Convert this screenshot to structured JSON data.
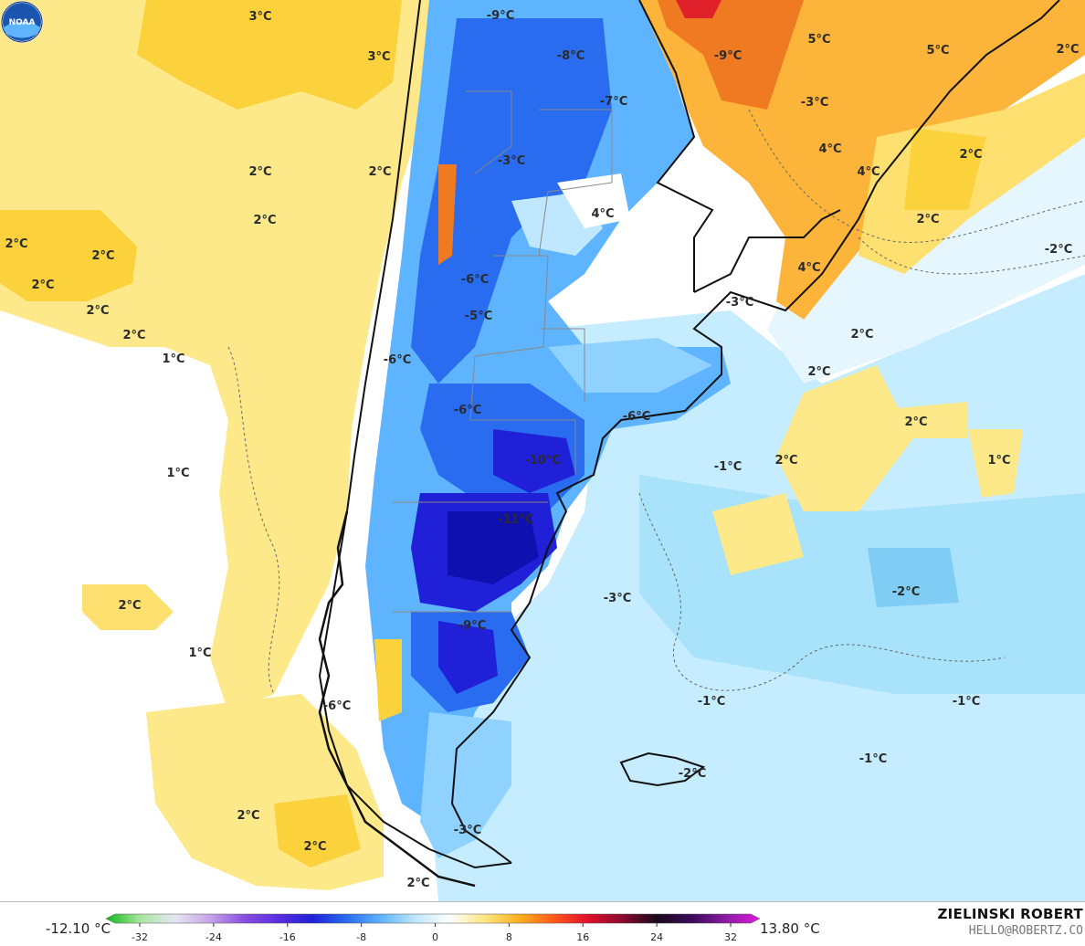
{
  "map": {
    "labels": [
      {
        "text": "3°C"
      },
      {
        "text": "3°C"
      },
      {
        "text": "2°C"
      },
      {
        "text": "2°C"
      },
      {
        "text": "2°C"
      },
      {
        "text": "2°C"
      },
      {
        "text": "2°C"
      },
      {
        "text": "2°C"
      },
      {
        "text": "2°C"
      },
      {
        "text": "2°C"
      },
      {
        "text": "1°C"
      },
      {
        "text": "2°C"
      },
      {
        "text": "1°C"
      },
      {
        "text": "2°C"
      },
      {
        "text": "2°C"
      },
      {
        "text": "2°C"
      },
      {
        "text": "-9°C"
      },
      {
        "text": "-8°C"
      },
      {
        "text": "-7°C"
      },
      {
        "text": "-3°C"
      },
      {
        "text": "4°C"
      },
      {
        "text": "-6°C"
      },
      {
        "text": "-5°C"
      },
      {
        "text": "-6°C"
      },
      {
        "text": "-6°C"
      },
      {
        "text": "-6°C"
      },
      {
        "text": "-10°C"
      },
      {
        "text": "-11°C"
      },
      {
        "text": "-9°C"
      },
      {
        "text": "-3°C"
      },
      {
        "text": "-6°C"
      },
      {
        "text": "-3°C"
      },
      {
        "text": "-9°C"
      },
      {
        "text": "5°C"
      },
      {
        "text": "5°C"
      },
      {
        "text": "2°C"
      },
      {
        "text": "-3°C"
      },
      {
        "text": "4°C"
      },
      {
        "text": "4°C"
      },
      {
        "text": "2°C"
      },
      {
        "text": "2°C"
      },
      {
        "text": "-2°C"
      },
      {
        "text": "4°C"
      },
      {
        "text": "-3°C"
      },
      {
        "text": "2°C"
      },
      {
        "text": "2°C"
      },
      {
        "text": "2°C"
      },
      {
        "text": "2°C"
      },
      {
        "text": "1°C"
      },
      {
        "text": "-1°C"
      },
      {
        "text": "2°C"
      },
      {
        "text": "-2°C"
      },
      {
        "text": "-3°C"
      },
      {
        "text": "-1°C"
      },
      {
        "text": "-1°C"
      },
      {
        "text": "-1°C"
      },
      {
        "text": "-2°C"
      }
    ]
  },
  "colorbar": {
    "min_label": "-12.10 °C",
    "max_label": "13.80 °C",
    "ticks": [
      "-32",
      "-24",
      "-16",
      "-8",
      "0",
      "8",
      "16",
      "24",
      "32"
    ],
    "stops": [
      "#12b81a",
      "#a8e6a0",
      "#e6e6f0",
      "#c7a6e8",
      "#8a4fe0",
      "#5a2ee0",
      "#2020d8",
      "#2a6cf0",
      "#5fb4ff",
      "#bfe8ff",
      "#ffffff",
      "#ffe680",
      "#ffb020",
      "#ff5a1a",
      "#e0102a",
      "#8a0a30",
      "#1a0a1a",
      "#3a0a5a",
      "#8a1aa0",
      "#e01ae0"
    ]
  },
  "footer": {
    "author": "ZIELINSKI ROBERT",
    "contact": "HELLO@ROBERTZ.CO"
  },
  "logo": {
    "text": "NOAA"
  }
}
